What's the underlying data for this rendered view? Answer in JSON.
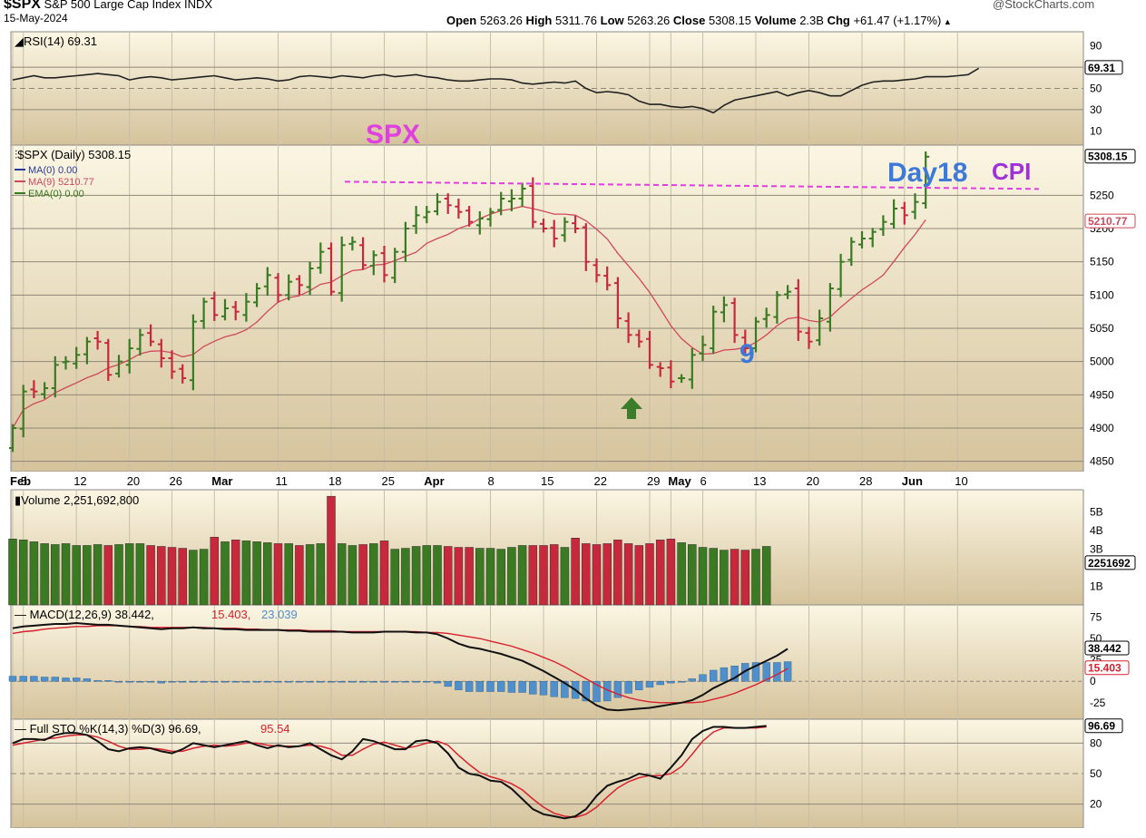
{
  "header": {
    "symbol": "$SPX",
    "name": "S&P 500 Large Cap Index",
    "exchange": "INDX",
    "date": "15-May-2024",
    "brand": "@StockCharts.com",
    "open_label": "Open",
    "open": "5263.26",
    "high_label": "High",
    "high": "5311.76",
    "low_label": "Low",
    "low": "5263.26",
    "close_label": "Close",
    "close": "5308.15",
    "volume_label": "Volume",
    "volume": "2.3B",
    "chg_label": "Chg",
    "chg": "+61.47 (+1.17%)"
  },
  "colors": {
    "panel_bg_top": "#fbf6e3",
    "panel_bg_bottom": "#d5c39c",
    "up": "#3a7a22",
    "down": "#c8283c",
    "ma9": "#d0485a",
    "macd_hist": "#4f8fcc",
    "annotation_pink": "#e040e0",
    "annotation_blue": "#3d79d8",
    "arrow_green": "#3c7d2c"
  },
  "chart_data": [
    {
      "type": "line",
      "panel": "rsi",
      "label": "RSI(14) 69.31",
      "last_value_tag": "69.31",
      "ylim": [
        0,
        100
      ],
      "y_ticks": [
        90,
        50,
        30,
        10
      ],
      "reference_lines": [
        70,
        50,
        30
      ],
      "series": [
        {
          "name": "RSI(14)",
          "values": [
            58,
            60,
            62,
            60,
            60,
            61,
            62,
            63,
            64,
            63,
            62,
            58,
            60,
            61,
            60,
            58,
            59,
            60,
            61,
            62,
            60,
            58,
            59,
            60,
            59,
            57,
            58,
            61,
            62,
            61,
            60,
            62,
            61,
            60,
            62,
            63,
            61,
            62,
            63,
            61,
            60,
            58,
            57,
            57,
            58,
            59,
            59,
            58,
            55,
            54,
            55,
            56,
            55,
            57,
            50,
            46,
            47,
            46,
            44,
            38,
            35,
            35,
            33,
            32,
            33,
            31,
            27,
            34,
            39,
            41,
            43,
            45,
            47,
            43,
            46,
            48,
            46,
            43,
            43,
            48,
            53,
            56,
            57,
            57,
            58,
            59,
            61,
            61,
            61,
            62,
            63,
            69
          ]
        }
      ]
    },
    {
      "type": "ohlc",
      "panel": "price",
      "label": "$SPX (Daily) 5308.15",
      "legend": [
        {
          "name": "MA(0) 0.00",
          "color": "#2a3a9a"
        },
        {
          "name": "MA(9) 5210.77",
          "color": "#d0485a"
        },
        {
          "name": "EMA(0) 0.00",
          "color": "#3a7a22"
        }
      ],
      "last_close_tag": "5308.15",
      "ma9_tag": "5210.77",
      "ylim": [
        4840,
        5320
      ],
      "y_ticks": [
        5250,
        5200,
        5150,
        5100,
        5050,
        5000,
        4950,
        4900,
        4850
      ],
      "x_ticks": [
        {
          "label": "Feb",
          "i": 0,
          "bold": true
        },
        {
          "label": "5",
          "i": 1
        },
        {
          "label": "12",
          "i": 6
        },
        {
          "label": "20",
          "i": 11
        },
        {
          "label": "26",
          "i": 15
        },
        {
          "label": "Mar",
          "i": 19,
          "bold": true
        },
        {
          "label": "11",
          "i": 25
        },
        {
          "label": "18",
          "i": 30
        },
        {
          "label": "25",
          "i": 35
        },
        {
          "label": "Apr",
          "i": 39,
          "bold": true
        },
        {
          "label": "8",
          "i": 45
        },
        {
          "label": "15",
          "i": 50
        },
        {
          "label": "22",
          "i": 55
        },
        {
          "label": "29",
          "i": 60
        },
        {
          "label": "May",
          "i": 62,
          "bold": true
        },
        {
          "label": "6",
          "i": 65
        },
        {
          "label": "13",
          "i": 70
        },
        {
          "label": "20",
          "i": 75
        },
        {
          "label": "28",
          "i": 80
        },
        {
          "label": "Jun",
          "i": 84,
          "bold": true
        },
        {
          "label": "10",
          "i": 89
        }
      ],
      "closes": [
        4900,
        4955,
        4955,
        4960,
        4995,
        5000,
        5010,
        5030,
        5030,
        4980,
        5000,
        5020,
        5040,
        5030,
        5005,
        4985,
        4975,
        5060,
        5090,
        5070,
        5080,
        5075,
        5090,
        5110,
        5130,
        5100,
        5120,
        5115,
        5140,
        5165,
        5105,
        5175,
        5180,
        5145,
        5160,
        5130,
        5165,
        5200,
        5220,
        5225,
        5240,
        5235,
        5225,
        5210,
        5215,
        5225,
        5245,
        5245,
        5260,
        5210,
        5200,
        5185,
        5210,
        5200,
        5150,
        5130,
        5115,
        5065,
        5040,
        5030,
        4995,
        4990,
        4970,
        4975,
        5010,
        5025,
        5075,
        5085,
        5040,
        5020,
        5060,
        5070,
        5100,
        5105,
        5045,
        5030,
        5065,
        5110,
        5150,
        5180,
        5185,
        5195,
        5210,
        5230,
        5220,
        5240,
        5308
      ],
      "annotations": [
        {
          "text": "SPX",
          "color": "#e040e0"
        },
        {
          "text": "Day18",
          "color": "#3d79d8"
        },
        {
          "text": "CPI",
          "color": "#a030d8"
        },
        {
          "text": "9",
          "color": "#3d79d8"
        }
      ],
      "resistance_level": 5265
    },
    {
      "type": "bar",
      "panel": "volume",
      "label": "Volume 2,251,692,800",
      "last_value_tag": "2251692",
      "y_ticks": [
        "5B",
        "4B",
        "3B",
        "1B"
      ],
      "ylim": [
        0,
        5
      ],
      "values_billions": [
        3.55,
        3.5,
        3.4,
        3.3,
        3.25,
        3.3,
        3.2,
        3.2,
        3.25,
        3.2,
        3.25,
        3.3,
        3.3,
        3.2,
        3.15,
        3.1,
        3.05,
        2.95,
        3.0,
        3.65,
        3.4,
        3.5,
        3.45,
        3.4,
        3.35,
        3.3,
        3.3,
        3.2,
        3.25,
        3.3,
        5.85,
        3.3,
        3.2,
        3.25,
        3.3,
        3.45,
        3.0,
        3.05,
        3.15,
        3.2,
        3.2,
        3.15,
        3.1,
        3.1,
        3.05,
        3.05,
        3.0,
        3.1,
        3.2,
        3.2,
        3.2,
        3.25,
        3.1,
        3.6,
        3.3,
        3.25,
        3.3,
        3.5,
        3.3,
        3.2,
        3.3,
        3.5,
        3.55,
        3.35,
        3.25,
        3.1,
        3.05,
        2.95,
        3.0,
        2.95,
        3.0,
        3.15
      ]
    },
    {
      "type": "line",
      "panel": "macd",
      "label_main": "MACD(12,26,9) 38.442",
      "label_signal": "15.403",
      "label_hist": "23.039",
      "macd_tag": "38.442",
      "signal_tag": "15.403",
      "ylim": [
        -40,
        85
      ],
      "y_ticks": [
        75,
        50,
        25,
        0,
        -25
      ],
      "macd": [
        62,
        64,
        65,
        66,
        67,
        67,
        68,
        67,
        66,
        66,
        65,
        64,
        63,
        62,
        61,
        62,
        62,
        63,
        62,
        62,
        61,
        61,
        60,
        60,
        60,
        60,
        59,
        59,
        58,
        58,
        58,
        58,
        57,
        57,
        57,
        58,
        58,
        58,
        57,
        57,
        55,
        50,
        44,
        40,
        38,
        35,
        32,
        28,
        24,
        18,
        12,
        5,
        -2,
        -10,
        -20,
        -28,
        -33,
        -34,
        -33,
        -32,
        -31,
        -29,
        -27,
        -25,
        -22,
        -16,
        -8,
        -2,
        4,
        12,
        18,
        24,
        30,
        38
      ],
      "signal": [
        56,
        58,
        59,
        61,
        62,
        63,
        64,
        64,
        65,
        65,
        65,
        64,
        64,
        63,
        63,
        63,
        63,
        63,
        63,
        62,
        62,
        62,
        61,
        61,
        60,
        60,
        60,
        60,
        59,
        59,
        59,
        58,
        58,
        58,
        58,
        58,
        58,
        58,
        58,
        57,
        57,
        56,
        54,
        52,
        50,
        47,
        44,
        41,
        37,
        33,
        28,
        23,
        17,
        10,
        3,
        -4,
        -10,
        -15,
        -19,
        -22,
        -24,
        -25,
        -25,
        -25,
        -25,
        -24,
        -21,
        -18,
        -14,
        -9,
        -4,
        2,
        8,
        15
      ],
      "histogram": [
        6,
        6,
        6,
        5,
        5,
        4,
        4,
        3,
        1,
        1,
        0,
        0,
        -1,
        -1,
        -2,
        -1,
        -1,
        0,
        -1,
        0,
        -1,
        -1,
        -1,
        -1,
        0,
        0,
        -1,
        -1,
        -1,
        -1,
        -1,
        0,
        -1,
        -1,
        -1,
        0,
        0,
        0,
        -1,
        0,
        -2,
        -6,
        -10,
        -12,
        -12,
        -12,
        -12,
        -13,
        -13,
        -15,
        -16,
        -18,
        -19,
        -20,
        -23,
        -24,
        -23,
        -19,
        -14,
        -10,
        -7,
        -4,
        -2,
        0,
        3,
        8,
        13,
        16,
        18,
        21,
        22,
        22,
        22,
        23
      ]
    },
    {
      "type": "line",
      "panel": "stochastic",
      "label_main": "Full STO %K(14,3) %D(3) 96.69,",
      "label_d": "95.54",
      "k_tag": "96.69",
      "ylim": [
        0,
        100
      ],
      "y_ticks": [
        80,
        50,
        20
      ],
      "reference_lines": [
        80,
        50,
        20
      ],
      "series": [
        {
          "name": "%K",
          "values": [
            80,
            84,
            84,
            83,
            88,
            90,
            90,
            88,
            82,
            74,
            72,
            75,
            76,
            75,
            72,
            70,
            74,
            80,
            78,
            76,
            78,
            80,
            82,
            78,
            75,
            78,
            76,
            77,
            80,
            74,
            68,
            64,
            72,
            84,
            82,
            78,
            74,
            74,
            82,
            83,
            80,
            70,
            56,
            50,
            48,
            43,
            42,
            35,
            25,
            15,
            10,
            8,
            6,
            8,
            15,
            28,
            38,
            42,
            45,
            50,
            48,
            45,
            56,
            68,
            84,
            92,
            96,
            96,
            95,
            95,
            96,
            97
          ]
        },
        {
          "name": "%D",
          "values": [
            78,
            80,
            82,
            84,
            85,
            87,
            88,
            88,
            86,
            82,
            77,
            74,
            74,
            75,
            74,
            72,
            72,
            75,
            77,
            78,
            77,
            78,
            80,
            80,
            78,
            77,
            77,
            77,
            78,
            77,
            74,
            68,
            68,
            74,
            79,
            81,
            78,
            75,
            77,
            80,
            82,
            78,
            68,
            59,
            51,
            47,
            44,
            40,
            34,
            25,
            17,
            11,
            8,
            7,
            10,
            17,
            27,
            36,
            42,
            46,
            48,
            48,
            50,
            57,
            69,
            82,
            91,
            95,
            95,
            95,
            95,
            96
          ]
        }
      ]
    }
  ]
}
